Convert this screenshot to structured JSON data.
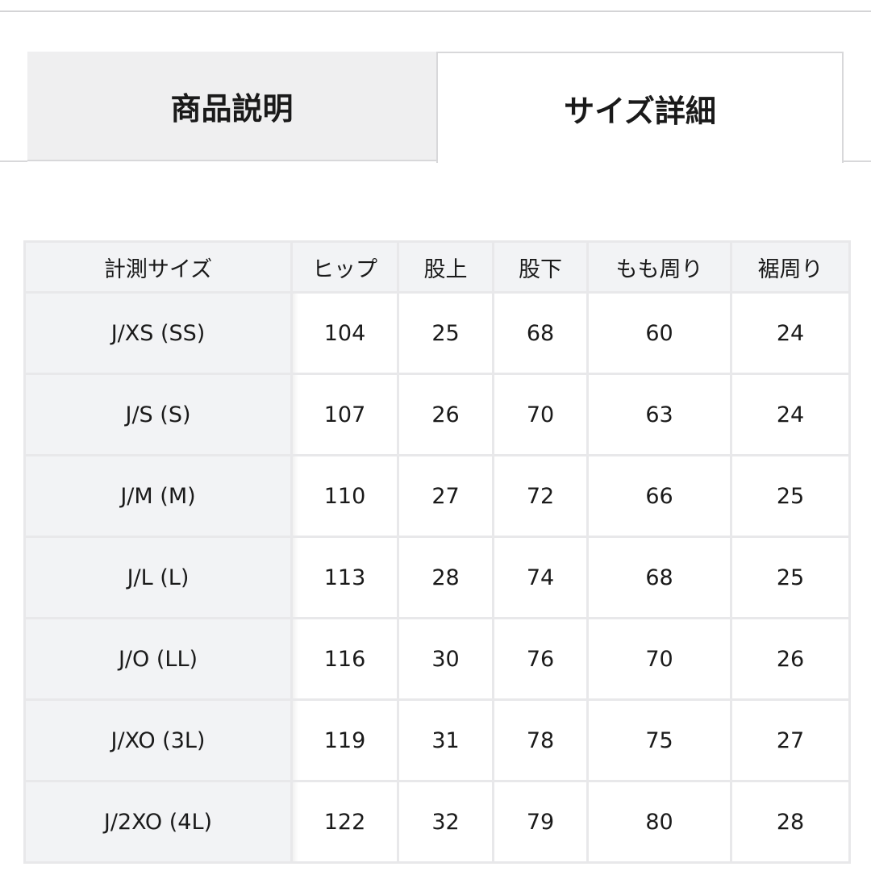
{
  "tabs": [
    {
      "label": "商品説明",
      "active": false
    },
    {
      "label": "サイズ詳細",
      "active": true
    }
  ],
  "table": {
    "headers": [
      "計測サイズ",
      "ヒップ",
      "股上",
      "股下",
      "もも周り",
      "裾周り"
    ],
    "rows": [
      [
        "J/XS (SS)",
        "104",
        "25",
        "68",
        "60",
        "24"
      ],
      [
        "J/S (S)",
        "107",
        "26",
        "70",
        "63",
        "24"
      ],
      [
        "J/M (M)",
        "110",
        "27",
        "72",
        "66",
        "25"
      ],
      [
        "J/L (L)",
        "113",
        "28",
        "74",
        "68",
        "25"
      ],
      [
        "J/O (LL)",
        "116",
        "30",
        "76",
        "70",
        "26"
      ],
      [
        "J/XO (3L)",
        "119",
        "31",
        "78",
        "75",
        "27"
      ],
      [
        "J/2XO (4L)",
        "122",
        "32",
        "79",
        "80",
        "28"
      ]
    ]
  },
  "colors": {
    "tab_inactive_bg": "#efeff0",
    "header_bg": "#f2f3f5",
    "border": "#e8e8ea"
  }
}
